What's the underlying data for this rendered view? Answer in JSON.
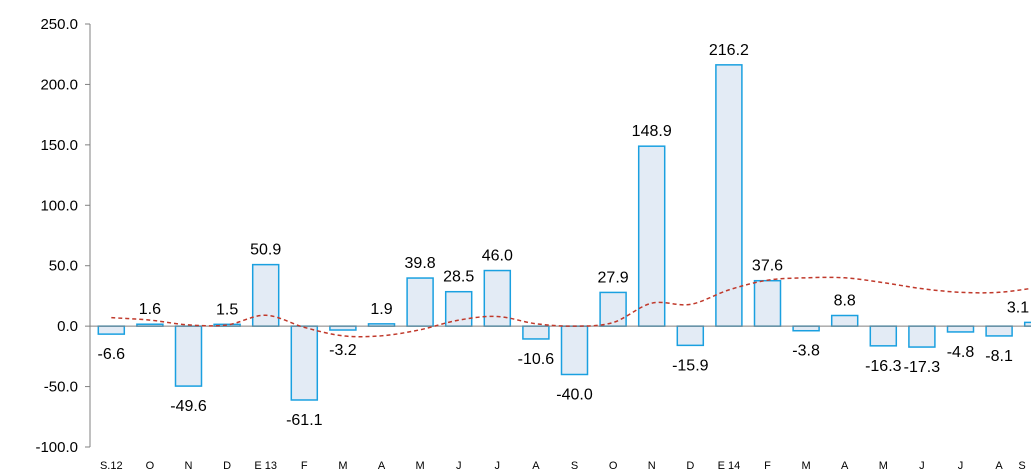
{
  "chart_data": {
    "type": "bar",
    "title": "",
    "xlabel": "",
    "ylabel": "",
    "ylim": [
      -100,
      250
    ],
    "yticks": [
      -100,
      -50,
      0,
      50,
      100,
      150,
      200,
      250
    ],
    "ytick_labels": [
      "-100.0",
      "-50.0",
      "0.0",
      "50.0",
      "100.0",
      "150.0",
      "200.0",
      "250.0"
    ],
    "grid": false,
    "legend": "none",
    "categories": [
      "S.12",
      "O",
      "N",
      "D",
      "E 13",
      "F",
      "M",
      "A",
      "M",
      "J",
      "J",
      "A",
      "S",
      "O",
      "N",
      "D",
      "E 14",
      "F",
      "M",
      "A",
      "M",
      "J",
      "J",
      "A",
      "S"
    ],
    "series": [
      {
        "type": "bar",
        "values": [
          -6.6,
          1.6,
          -49.6,
          1.5,
          50.9,
          -61.1,
          -3.2,
          1.9,
          39.8,
          28.5,
          46.0,
          -10.6,
          -40.0,
          27.9,
          148.9,
          -15.9,
          216.2,
          37.6,
          -3.8,
          8.8,
          -16.3,
          -17.3,
          -4.8,
          -8.1,
          3.1
        ],
        "labels": [
          "-6.6",
          "1.6",
          "-49.6",
          "1.5",
          "50.9",
          "-61.1",
          "-3.2",
          "1.9",
          "39.8",
          "28.5",
          "46.0",
          "-10.6",
          "-40.0",
          "27.9",
          "148.9",
          "-15.9",
          "216.2",
          "37.6",
          "-3.8",
          "8.8",
          "-16.3",
          "-17.3",
          "-4.8",
          "-8.1",
          "3.1"
        ],
        "fill_color": "#e3ebf5",
        "border_color": "#1aa0e0"
      },
      {
        "type": "line",
        "style": "dashed",
        "color": "#c0392b",
        "values": [
          7,
          5,
          1,
          1,
          9,
          -1,
          -8,
          -8,
          -3,
          5,
          8,
          2,
          0,
          3,
          19,
          18,
          30,
          38,
          40,
          40,
          36,
          31,
          28,
          28,
          32
        ]
      }
    ]
  }
}
